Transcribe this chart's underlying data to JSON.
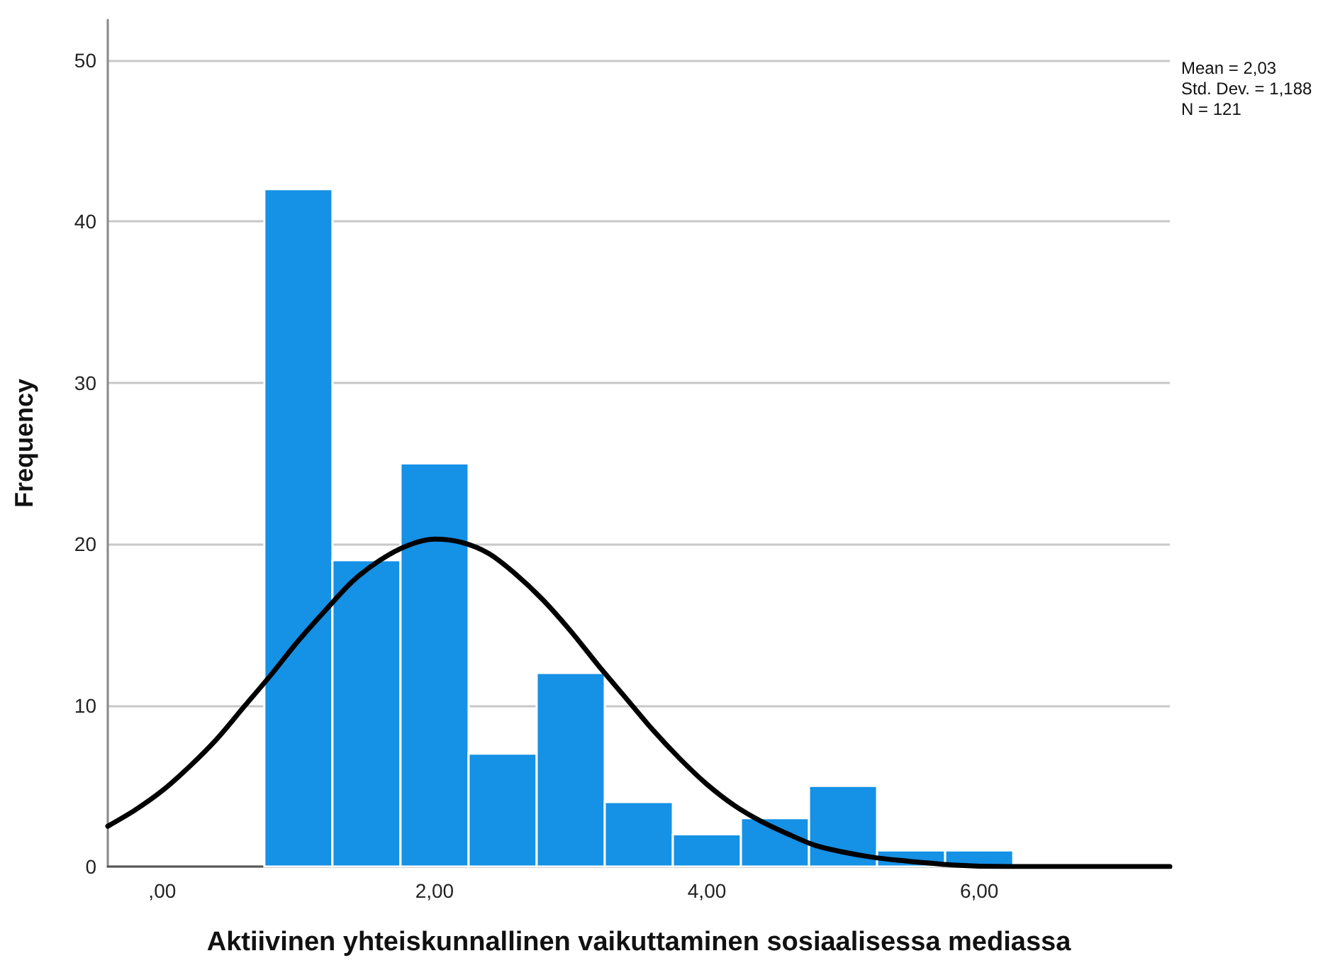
{
  "chart_data": {
    "type": "histogram",
    "xlabel": "Aktiivinen yhteiskunnallinen vaikuttaminen sosiaalisessa mediassa",
    "ylabel": "Frequency",
    "annotations": [
      "Mean = 2,03",
      "Std. Dev. = 1,188",
      "N = 121"
    ],
    "bins": [
      0.75,
      1.25,
      1.75,
      2.25,
      2.75,
      3.25,
      3.75,
      4.25,
      4.75,
      5.25,
      5.75,
      6.25
    ],
    "series": [
      {
        "color": "#1591e6",
        "values": [
          42,
          19,
          25,
          7,
          12,
          4,
          2,
          3,
          5,
          1,
          1
        ]
      },
      {
        "type": "line",
        "color": "#000000",
        "x": [
          -0.4,
          -0.2,
          0,
          0.2,
          0.4,
          0.6,
          0.8,
          1.0,
          1.2,
          1.4,
          1.6,
          1.8,
          2.0,
          2.2,
          2.4,
          2.6,
          2.8,
          3.0,
          3.2,
          3.4,
          3.6,
          3.8,
          4.0,
          4.2,
          4.4,
          4.6,
          4.8,
          5.0,
          5.2,
          5.4,
          5.8,
          6.2,
          6.6,
          7.0,
          7.4
        ],
        "values": [
          2.5,
          3.5,
          4.7,
          6.2,
          7.9,
          9.9,
          11.9,
          14.0,
          15.9,
          17.7,
          19.0,
          19.9,
          20.3,
          20.1,
          19.4,
          18.1,
          16.5,
          14.6,
          12.5,
          10.5,
          8.5,
          6.7,
          5.1,
          3.8,
          2.8,
          2.0,
          1.3,
          0.9,
          0.6,
          0.4,
          0.1,
          0.0,
          0.0,
          0.0,
          0.0
        ]
      }
    ],
    "xlim": [
      -0.4,
      7.4
    ],
    "xticks": [
      {
        "value": 0,
        "label": ",00"
      },
      {
        "value": 2,
        "label": "2,00"
      },
      {
        "value": 4,
        "label": "4,00"
      },
      {
        "value": 6,
        "label": "6,00"
      }
    ],
    "ylim": [
      0,
      52.5
    ],
    "yticks": [
      0,
      10,
      20,
      30,
      40,
      50
    ],
    "grid": "y"
  }
}
